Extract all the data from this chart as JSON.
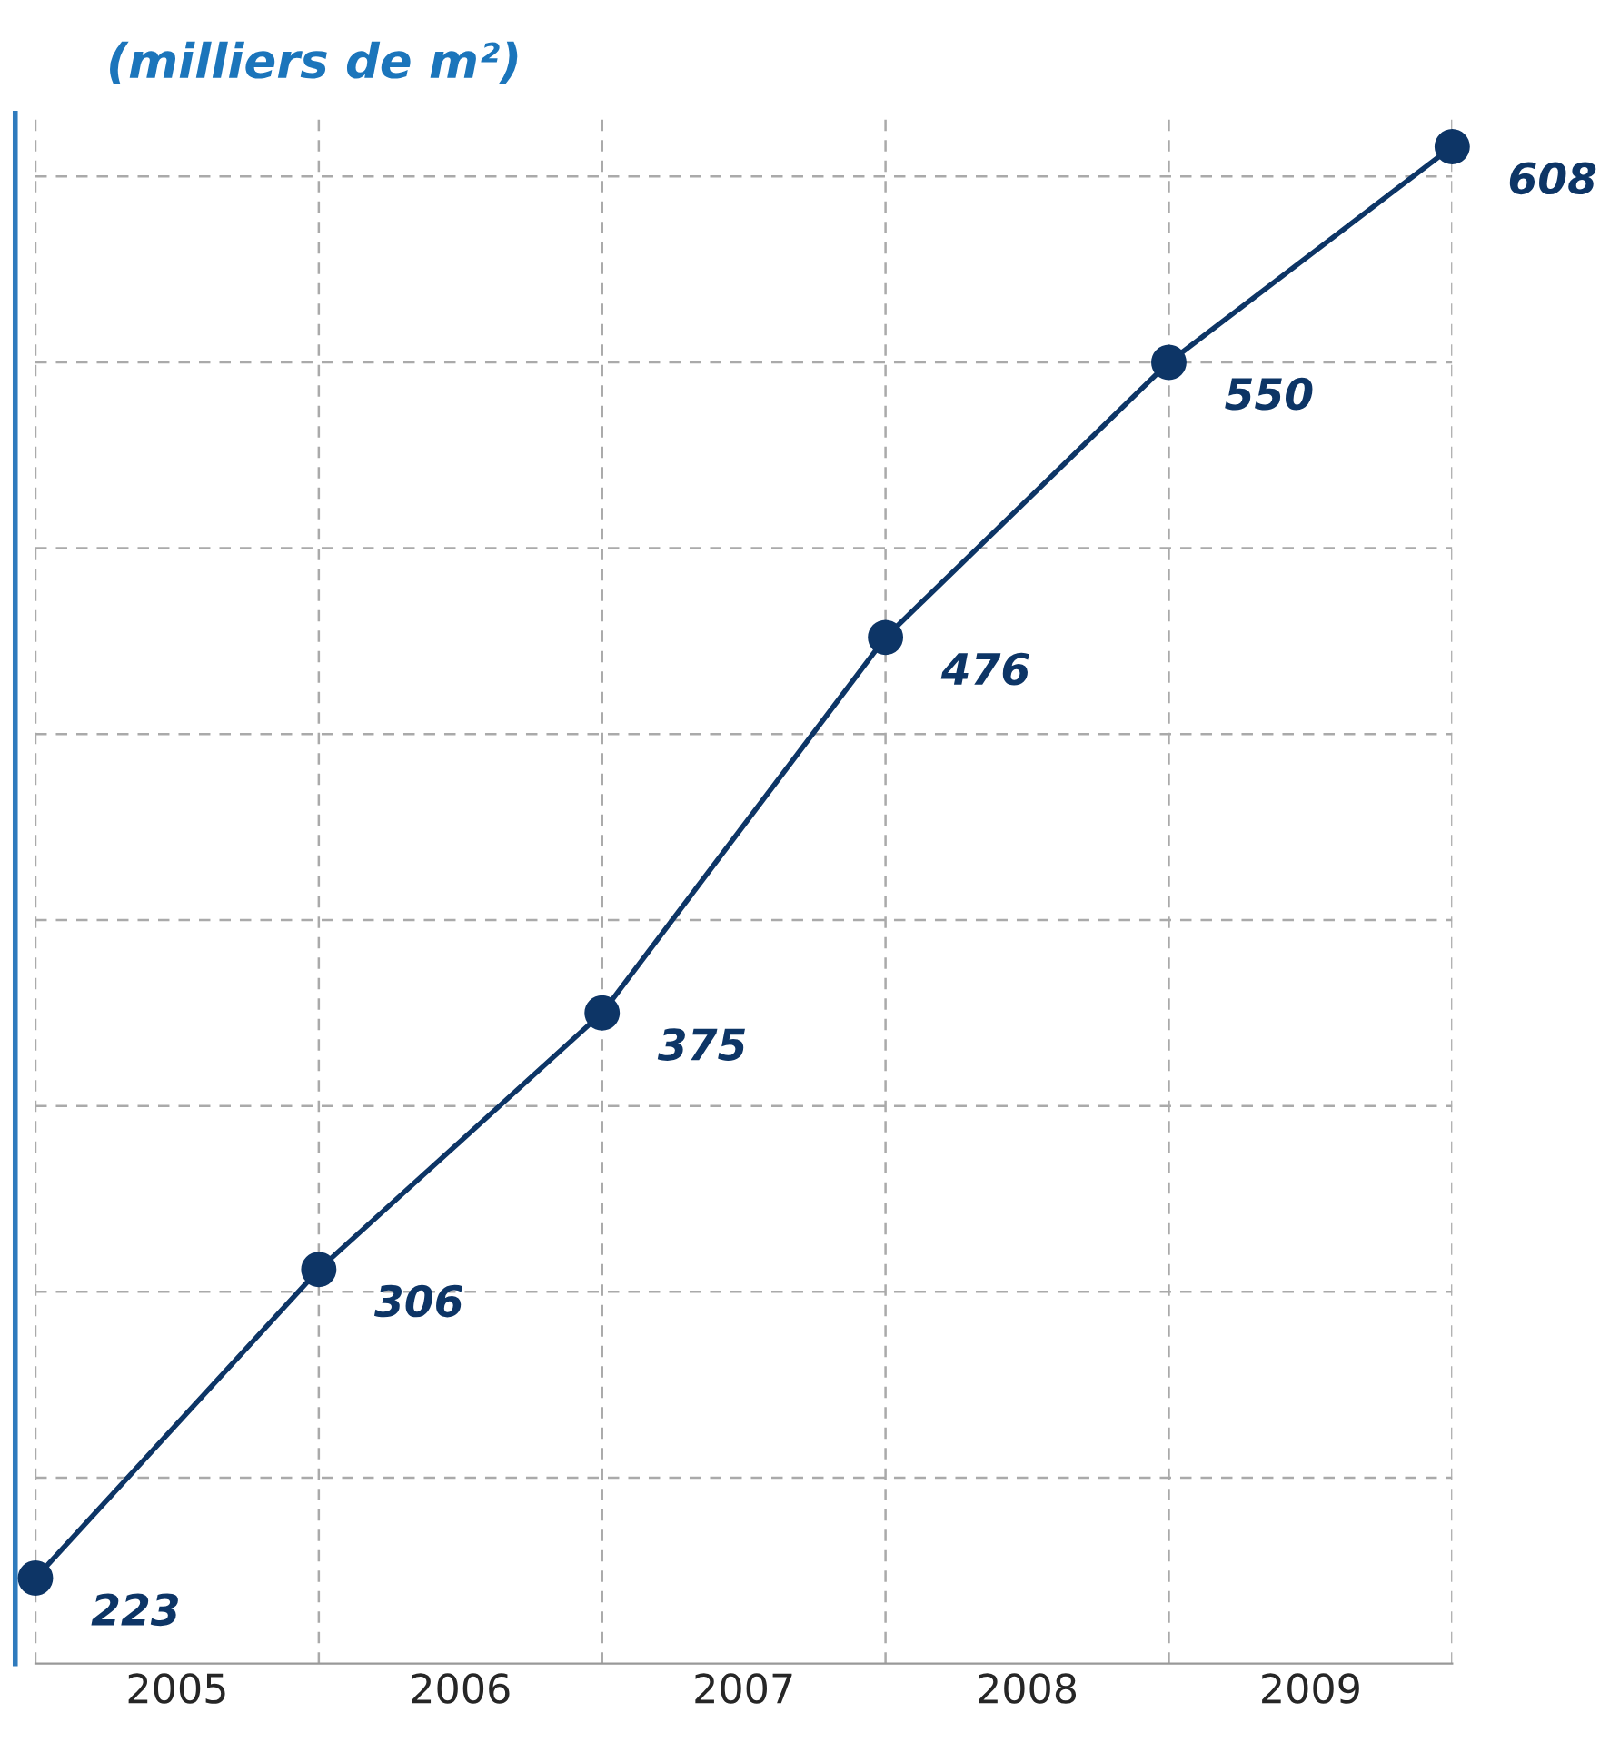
{
  "chart_data": {
    "type": "line",
    "title": "(milliers de m²)",
    "x": [
      2005,
      2006,
      2007,
      2008,
      2009,
      2010
    ],
    "series": [
      {
        "color": "#0d3566",
        "values": [
          223,
          306,
          375,
          476,
          550,
          608
        ]
      }
    ],
    "xlim": [
      2005,
      2010
    ],
    "xticks": [
      {
        "value": 2005,
        "label": null
      },
      {
        "value": 2005.5,
        "label": "2005"
      },
      {
        "value": 2006,
        "label": null
      },
      {
        "value": 2006.5,
        "label": "2006"
      },
      {
        "value": 2007,
        "label": null
      },
      {
        "value": 2007.5,
        "label": "2007"
      },
      {
        "value": 2008,
        "label": null
      },
      {
        "value": 2008.5,
        "label": "2008"
      },
      {
        "value": 2009,
        "label": null
      },
      {
        "value": 2009.5,
        "label": "2009"
      },
      {
        "value": 2010,
        "label": null
      }
    ],
    "ylim": [
      200,
      617
    ],
    "yticks": [
      {
        "value": 250,
        "label": null
      },
      {
        "value": 300,
        "label": null
      },
      {
        "value": 350,
        "label": null
      },
      {
        "value": 400,
        "label": null
      },
      {
        "value": 450,
        "label": null
      },
      {
        "value": 500,
        "label": null
      },
      {
        "value": 550,
        "label": null
      },
      {
        "value": 600,
        "label": null
      }
    ],
    "tick_labels": "x",
    "grid": true,
    "marker": "circle",
    "line_style": "solid",
    "data_labels": true,
    "legend": false
  }
}
